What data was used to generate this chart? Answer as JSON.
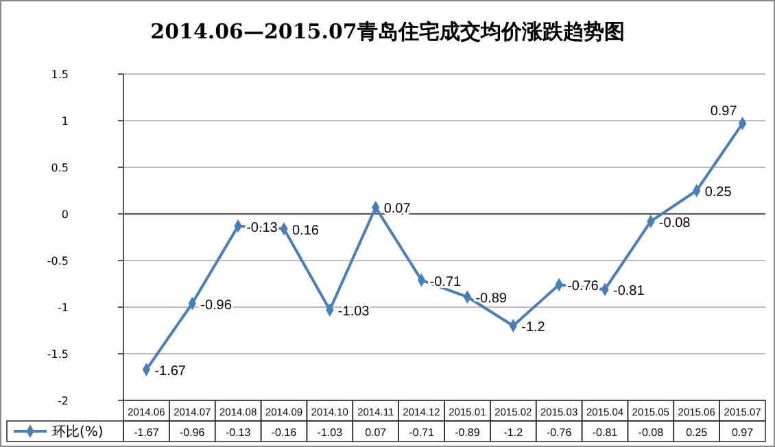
{
  "chart_data": {
    "type": "line",
    "title": "2014.06—2015.07青岛住宅成交均价涨跌趋势图",
    "categories": [
      "2014.06",
      "2014.07",
      "2014.08",
      "2014.09",
      "2014.10",
      "2014.11",
      "2014.12",
      "2015.01",
      "2015.02",
      "2015.03",
      "2015.04",
      "2015.05",
      "2015.06",
      "2015.07"
    ],
    "series": [
      {
        "name": "环比(%)",
        "color": "#4a7ebb",
        "values": [
          -1.67,
          -0.96,
          -0.13,
          -0.16,
          -1.03,
          0.07,
          -0.71,
          -0.89,
          -1.2,
          -0.76,
          -0.81,
          -0.08,
          0.25,
          0.97
        ]
      }
    ],
    "annotations": [
      {
        "text": "-1.67",
        "x": "2014.06",
        "y": -1.67
      },
      {
        "text": "-0.96",
        "x": "2014.07",
        "y": -0.96
      },
      {
        "text": "-0.13",
        "x": "2014.08",
        "y": -0.13
      },
      {
        "text": "0.16",
        "x": "2014.09",
        "y": -0.16
      },
      {
        "text": "-1.03",
        "x": "2014.10",
        "y": -1.03
      },
      {
        "text": "0.07",
        "x": "2014.11",
        "y": 0.07
      },
      {
        "text": "-0.71",
        "x": "2014.12",
        "y": -0.71
      },
      {
        "text": "-0.89",
        "x": "2015.01",
        "y": -0.89
      },
      {
        "text": "-1.2",
        "x": "2015.02",
        "y": -1.2
      },
      {
        "text": "-0.76",
        "x": "2015.03",
        "y": -0.76
      },
      {
        "text": "-0.81",
        "x": "2015.04",
        "y": -0.81
      },
      {
        "text": "-0.08",
        "x": "2015.05",
        "y": -0.08
      },
      {
        "text": "0.25",
        "x": "2015.06",
        "y": 0.25
      },
      {
        "text": "0.97",
        "x": "2015.07",
        "y": 0.97
      }
    ],
    "ylim": [
      -2,
      1.5
    ],
    "yticks": [
      -2,
      -1.5,
      -1,
      -0.5,
      0,
      0.5,
      1,
      1.5
    ],
    "grid": "y",
    "marker": "diamond",
    "line_style": "solid",
    "data_labels": true,
    "legend": "bottom left"
  }
}
